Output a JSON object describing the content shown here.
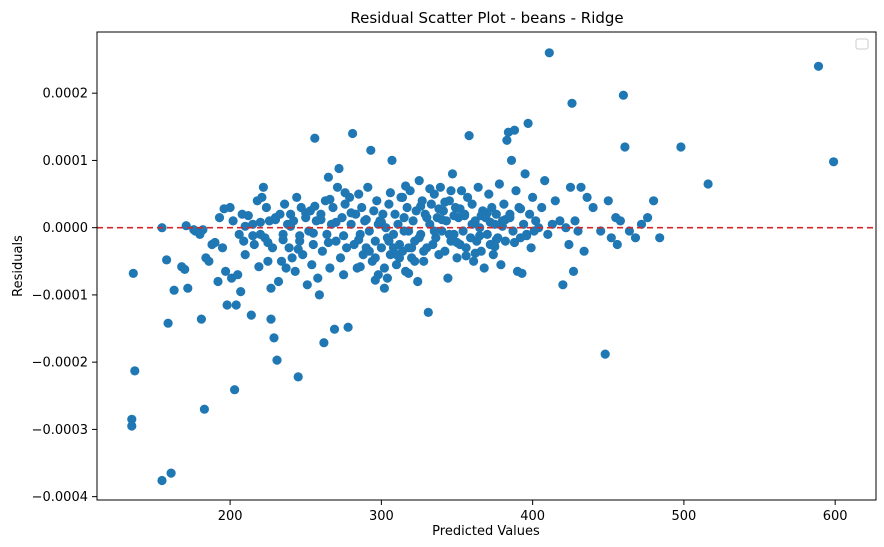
{
  "chart_data": {
    "type": "scatter",
    "title": "Residual Scatter Plot - beans  - Ridge",
    "xlabel": "Predicted Values",
    "ylabel": "Residuals",
    "xlim": [
      112,
      627
    ],
    "ylim": [
      -0.000405,
      0.000291
    ],
    "xticks": [
      200,
      300,
      400,
      500,
      600
    ],
    "xtick_labels": [
      "200",
      "300",
      "400",
      "500",
      "600"
    ],
    "yticks": [
      -0.0004,
      -0.0003,
      -0.0002,
      -0.0001,
      0.0,
      0.0001,
      0.0002
    ],
    "ytick_labels": [
      "−0.0004",
      "−0.0003",
      "−0.0002",
      "−0.0001",
      "0.0000",
      "0.0001",
      "0.0002"
    ],
    "grid": false,
    "legend": "top-right (empty)",
    "point_color": "#1f77b4",
    "reference_line": {
      "y": 0,
      "style": "dashed",
      "color": "#d62728"
    },
    "points": [
      [
        136,
        -6.8e-05
      ],
      [
        135,
        -0.000285
      ],
      [
        135,
        -0.000295
      ],
      [
        137,
        -0.000213
      ],
      [
        155,
        0.0
      ],
      [
        155,
        -0.000376
      ],
      [
        158,
        -4.8e-05
      ],
      [
        159,
        -0.000142
      ],
      [
        161,
        -0.000365
      ],
      [
        163,
        -9.3e-05
      ],
      [
        168,
        -5.8e-05
      ],
      [
        170,
        -6.2e-05
      ],
      [
        171,
        3e-06
      ],
      [
        172,
        -9e-05
      ],
      [
        176,
        -3e-06
      ],
      [
        177,
        -5e-06
      ],
      [
        180,
        -1e-05
      ],
      [
        181,
        -0.000136
      ],
      [
        182,
        -3e-06
      ],
      [
        183,
        -0.00027
      ],
      [
        184,
        -4.5e-05
      ],
      [
        186,
        -5e-05
      ],
      [
        188,
        -2.5e-05
      ],
      [
        190,
        -2.2e-05
      ],
      [
        192,
        -8e-05
      ],
      [
        193,
        1.5e-05
      ],
      [
        195,
        -3e-05
      ],
      [
        196,
        2.8e-05
      ],
      [
        197,
        -6.5e-05
      ],
      [
        198,
        -0.000115
      ],
      [
        200,
        3e-05
      ],
      [
        201,
        -7.5e-05
      ],
      [
        202,
        1e-05
      ],
      [
        203,
        -0.000241
      ],
      [
        204,
        -0.000115
      ],
      [
        205,
        -7e-05
      ],
      [
        206,
        -1e-05
      ],
      [
        207,
        -9.5e-05
      ],
      [
        208,
        2e-05
      ],
      [
        209,
        -2e-05
      ],
      [
        210,
        -4e-05
      ],
      [
        212,
        1.8e-05
      ],
      [
        214,
        -0.00013
      ],
      [
        215,
        5e-06
      ],
      [
        216,
        -2.5e-05
      ],
      [
        218,
        4e-05
      ],
      [
        219,
        -5.8e-05
      ],
      [
        220,
        -1e-05
      ],
      [
        221,
        4.5e-05
      ],
      [
        222,
        6e-05
      ],
      [
        223,
        -1.5e-05
      ],
      [
        224,
        3e-05
      ],
      [
        225,
        -5e-05
      ],
      [
        226,
        1e-05
      ],
      [
        227,
        -9e-05
      ],
      [
        227,
        -0.000136
      ],
      [
        228,
        -3e-05
      ],
      [
        229,
        -0.000164
      ],
      [
        230,
        1.5e-05
      ],
      [
        231,
        -0.000197
      ],
      [
        232,
        -8e-05
      ],
      [
        233,
        2e-05
      ],
      [
        234,
        -5e-05
      ],
      [
        235,
        -1e-05
      ],
      [
        236,
        3.5e-05
      ],
      [
        237,
        -6e-05
      ],
      [
        238,
        5e-06
      ],
      [
        239,
        -3e-05
      ],
      [
        240,
        2e-05
      ],
      [
        241,
        -4.5e-05
      ],
      [
        242,
        1e-05
      ],
      [
        243,
        -6.5e-05
      ],
      [
        244,
        4.5e-05
      ],
      [
        245,
        -0.000222
      ],
      [
        246,
        -2e-05
      ],
      [
        247,
        3e-05
      ],
      [
        248,
        -4e-05
      ],
      [
        250,
        1.5e-05
      ],
      [
        251,
        -8.5e-05
      ],
      [
        252,
        -5e-06
      ],
      [
        253,
        2.5e-05
      ],
      [
        254,
        -5.5e-05
      ],
      [
        255,
        -2.5e-05
      ],
      [
        256,
        0.000133
      ],
      [
        257,
        1e-05
      ],
      [
        258,
        -7.5e-05
      ],
      [
        259,
        -0.0001
      ],
      [
        260,
        2e-05
      ],
      [
        261,
        -3.5e-05
      ],
      [
        262,
        -0.000171
      ],
      [
        263,
        4e-05
      ],
      [
        264,
        -1e-05
      ],
      [
        265,
        7.5e-05
      ],
      [
        266,
        -6e-05
      ],
      [
        267,
        5e-06
      ],
      [
        268,
        3e-05
      ],
      [
        269,
        -0.000151
      ],
      [
        270,
        -2e-05
      ],
      [
        271,
        6e-05
      ],
      [
        272,
        8.8e-05
      ],
      [
        273,
        -4.5e-05
      ],
      [
        274,
        1.5e-05
      ],
      [
        275,
        -7e-05
      ],
      [
        276,
        3.5e-05
      ],
      [
        277,
        -3e-05
      ],
      [
        278,
        -0.000148
      ],
      [
        279,
        4.5e-05
      ],
      [
        280,
        5e-06
      ],
      [
        281,
        0.00014
      ],
      [
        282,
        -2.5e-05
      ],
      [
        283,
        2e-05
      ],
      [
        284,
        -6e-05
      ],
      [
        285,
        5e-05
      ],
      [
        286,
        -1e-05
      ],
      [
        287,
        3e-05
      ],
      [
        288,
        -4e-05
      ],
      [
        289,
        1e-05
      ],
      [
        290,
        -3e-05
      ],
      [
        291,
        6e-05
      ],
      [
        292,
        -5e-06
      ],
      [
        293,
        0.000115
      ],
      [
        294,
        -5e-05
      ],
      [
        295,
        2.5e-05
      ],
      [
        296,
        -2e-05
      ],
      [
        297,
        4e-05
      ],
      [
        298,
        -7e-05
      ],
      [
        299,
        1e-05
      ],
      [
        300,
        -3e-05
      ],
      [
        301,
        2e-05
      ],
      [
        302,
        -9e-05
      ],
      [
        303,
        0.0
      ],
      [
        304,
        -1.5e-05
      ],
      [
        305,
        3.5e-05
      ],
      [
        306,
        -4e-05
      ],
      [
        307,
        0.0001
      ],
      [
        308,
        -1e-05
      ],
      [
        309,
        2e-05
      ],
      [
        310,
        -5.5e-05
      ],
      [
        311,
        5e-06
      ],
      [
        312,
        -2.5e-05
      ],
      [
        313,
        4.5e-05
      ],
      [
        314,
        -3.5e-05
      ],
      [
        315,
        1.5e-05
      ],
      [
        316,
        -6.5e-05
      ],
      [
        317,
        3e-05
      ],
      [
        318,
        -5e-06
      ],
      [
        319,
        5.5e-05
      ],
      [
        320,
        -4.5e-05
      ],
      [
        321,
        1e-05
      ],
      [
        322,
        -2e-05
      ],
      [
        323,
        2.5e-05
      ],
      [
        324,
        -8e-05
      ],
      [
        325,
        7e-05
      ],
      [
        326,
        -1e-05
      ],
      [
        327,
        4e-05
      ],
      [
        328,
        -5e-05
      ],
      [
        329,
        2e-05
      ],
      [
        330,
        -3e-05
      ],
      [
        331,
        -0.000126
      ],
      [
        332,
        5e-06
      ],
      [
        333,
        3.5e-05
      ],
      [
        334,
        -2.5e-05
      ],
      [
        335,
        5e-05
      ],
      [
        336,
        -1.5e-05
      ],
      [
        337,
        1.5e-05
      ],
      [
        338,
        -4e-05
      ],
      [
        339,
        6e-05
      ],
      [
        340,
        -5e-06
      ],
      [
        341,
        2.5e-05
      ],
      [
        342,
        -3.5e-05
      ],
      [
        343,
        1e-05
      ],
      [
        344,
        -7.5e-05
      ],
      [
        345,
        4e-05
      ],
      [
        346,
        -2e-05
      ],
      [
        347,
        8e-05
      ],
      [
        348,
        -1e-05
      ],
      [
        349,
        3e-05
      ],
      [
        350,
        -4.5e-05
      ],
      [
        351,
        1.5e-05
      ],
      [
        352,
        -2.5e-05
      ],
      [
        353,
        5.5e-05
      ],
      [
        354,
        -5e-06
      ],
      [
        355,
        2e-05
      ],
      [
        356,
        -3e-05
      ],
      [
        357,
        4.5e-05
      ],
      [
        358,
        0.000137
      ],
      [
        359,
        -1.5e-05
      ],
      [
        360,
        3.5e-05
      ],
      [
        361,
        -5e-05
      ],
      [
        362,
        1e-05
      ],
      [
        363,
        -2e-05
      ],
      [
        364,
        6e-05
      ],
      [
        365,
        0.0
      ],
      [
        366,
        -3.5e-05
      ],
      [
        367,
        2.5e-05
      ],
      [
        368,
        -6e-05
      ],
      [
        369,
        1.5e-05
      ],
      [
        370,
        -1e-05
      ],
      [
        371,
        5e-05
      ],
      [
        372,
        -2.5e-05
      ],
      [
        373,
        3e-05
      ],
      [
        374,
        -4e-05
      ],
      [
        375,
        5e-06
      ],
      [
        376,
        2e-05
      ],
      [
        377,
        -1.5e-05
      ],
      [
        378,
        6.5e-05
      ],
      [
        379,
        -5.5e-05
      ],
      [
        380,
        1e-05
      ],
      [
        381,
        3.5e-05
      ],
      [
        382,
        -2e-05
      ],
      [
        383,
        0.00013
      ],
      [
        384,
        0.000142
      ],
      [
        385,
        1.5e-05
      ],
      [
        386,
        0.0001
      ],
      [
        387,
        -5e-06
      ],
      [
        388,
        0.000145
      ],
      [
        389,
        5.5e-05
      ],
      [
        390,
        -6.5e-05
      ],
      [
        391,
        3e-05
      ],
      [
        392,
        -1.5e-05
      ],
      [
        393,
        -6.8e-05
      ],
      [
        394,
        5e-06
      ],
      [
        395,
        8e-05
      ],
      [
        396,
        -1e-05
      ],
      [
        397,
        0.000155
      ],
      [
        398,
        2e-05
      ],
      [
        399,
        -3e-05
      ],
      [
        400,
        4.5e-05
      ],
      [
        401,
        -5e-06
      ],
      [
        402,
        1e-05
      ],
      [
        404,
        0.0
      ],
      [
        406,
        3e-05
      ],
      [
        408,
        7e-05
      ],
      [
        410,
        -1e-05
      ],
      [
        411,
        0.00026
      ],
      [
        413,
        5e-06
      ],
      [
        415,
        4e-05
      ],
      [
        418,
        1e-05
      ],
      [
        420,
        -8.5e-05
      ],
      [
        422,
        0.0
      ],
      [
        424,
        -2.5e-05
      ],
      [
        425,
        6e-05
      ],
      [
        426,
        0.000185
      ],
      [
        427,
        -6.5e-05
      ],
      [
        428,
        1e-05
      ],
      [
        430,
        -5e-06
      ],
      [
        432,
        6e-05
      ],
      [
        434,
        -3.5e-05
      ],
      [
        436,
        4.5e-05
      ],
      [
        440,
        3e-05
      ],
      [
        445,
        -5e-06
      ],
      [
        448,
        -0.000188
      ],
      [
        450,
        4e-05
      ],
      [
        452,
        -1.5e-05
      ],
      [
        455,
        1.5e-05
      ],
      [
        456,
        -2.5e-05
      ],
      [
        458,
        1e-05
      ],
      [
        460,
        0.000197
      ],
      [
        461,
        0.00012
      ],
      [
        464,
        -5e-06
      ],
      [
        468,
        -1.5e-05
      ],
      [
        472,
        5e-06
      ],
      [
        476,
        1.5e-05
      ],
      [
        480,
        4e-05
      ],
      [
        484,
        -1.5e-05
      ],
      [
        498,
        0.00012
      ],
      [
        516,
        6.5e-05
      ],
      [
        589,
        0.00024
      ],
      [
        599,
        9.8e-05
      ],
      [
        385,
        2e-05
      ],
      [
        360,
        5e-06
      ],
      [
        345,
        -1e-05
      ],
      [
        330,
        1.5e-05
      ],
      [
        315,
        -5e-06
      ],
      [
        300,
        8e-06
      ],
      [
        320,
        -3e-05
      ],
      [
        310,
        -4e-05
      ],
      [
        305,
        -2e-05
      ],
      [
        325,
        -1.5e-05
      ],
      [
        335,
        -5e-06
      ],
      [
        340,
        1.2e-05
      ],
      [
        350,
        -2.2e-05
      ],
      [
        355,
        1.8e-05
      ],
      [
        365,
        -1.2e-05
      ],
      [
        370,
        2.2e-05
      ],
      [
        375,
        -2.8e-05
      ],
      [
        380,
        2e-06
      ],
      [
        290,
        1.2e-05
      ],
      [
        285,
        -1.8e-05
      ],
      [
        280,
        2.2e-05
      ],
      [
        275,
        -1.2e-05
      ],
      [
        270,
        8e-06
      ],
      [
        265,
        -2.2e-05
      ],
      [
        260,
        1.2e-05
      ],
      [
        255,
        -8e-06
      ],
      [
        250,
        2.2e-05
      ],
      [
        245,
        -3.2e-05
      ],
      [
        240,
        2e-06
      ],
      [
        235,
        -1.8e-05
      ],
      [
        230,
        1.2e-05
      ],
      [
        225,
        -2.2e-05
      ],
      [
        220,
        8e-06
      ],
      [
        215,
        -1.2e-05
      ],
      [
        210,
        2e-06
      ],
      [
        308,
        -3e-05
      ],
      [
        312,
        -4.5e-05
      ],
      [
        318,
        -3e-05
      ],
      [
        322,
        -5e-05
      ],
      [
        328,
        -3.5e-05
      ],
      [
        302,
        -6e-05
      ],
      [
        296,
        -4.5e-05
      ],
      [
        292,
        -3.5e-05
      ],
      [
        298,
        5e-06
      ],
      [
        314,
        4.5e-05
      ],
      [
        326,
        3.2e-05
      ],
      [
        338,
        2.8e-05
      ],
      [
        342,
        3.8e-05
      ],
      [
        348,
        1.8e-05
      ],
      [
        352,
        2.8e-05
      ],
      [
        356,
        -4.2e-05
      ],
      [
        362,
        -3.8e-05
      ],
      [
        366,
        1.8e-05
      ],
      [
        372,
        8e-06
      ],
      [
        376,
        -1.8e-05
      ],
      [
        382,
        1.2e-05
      ],
      [
        388,
        -2.2e-05
      ],
      [
        392,
        2.8e-05
      ],
      [
        396,
        -1.2e-05
      ],
      [
        306,
        5.2e-05
      ],
      [
        316,
        6.2e-05
      ],
      [
        332,
        5.8e-05
      ],
      [
        346,
        5.5e-05
      ],
      [
        304,
        -7.5e-05
      ],
      [
        318,
        -6.8e-05
      ],
      [
        296,
        -7.8e-05
      ],
      [
        286,
        -5.8e-05
      ],
      [
        276,
        5.2e-05
      ],
      [
        266,
        4.2e-05
      ],
      [
        256,
        3.2e-05
      ],
      [
        246,
        -1.2e-05
      ]
    ]
  }
}
